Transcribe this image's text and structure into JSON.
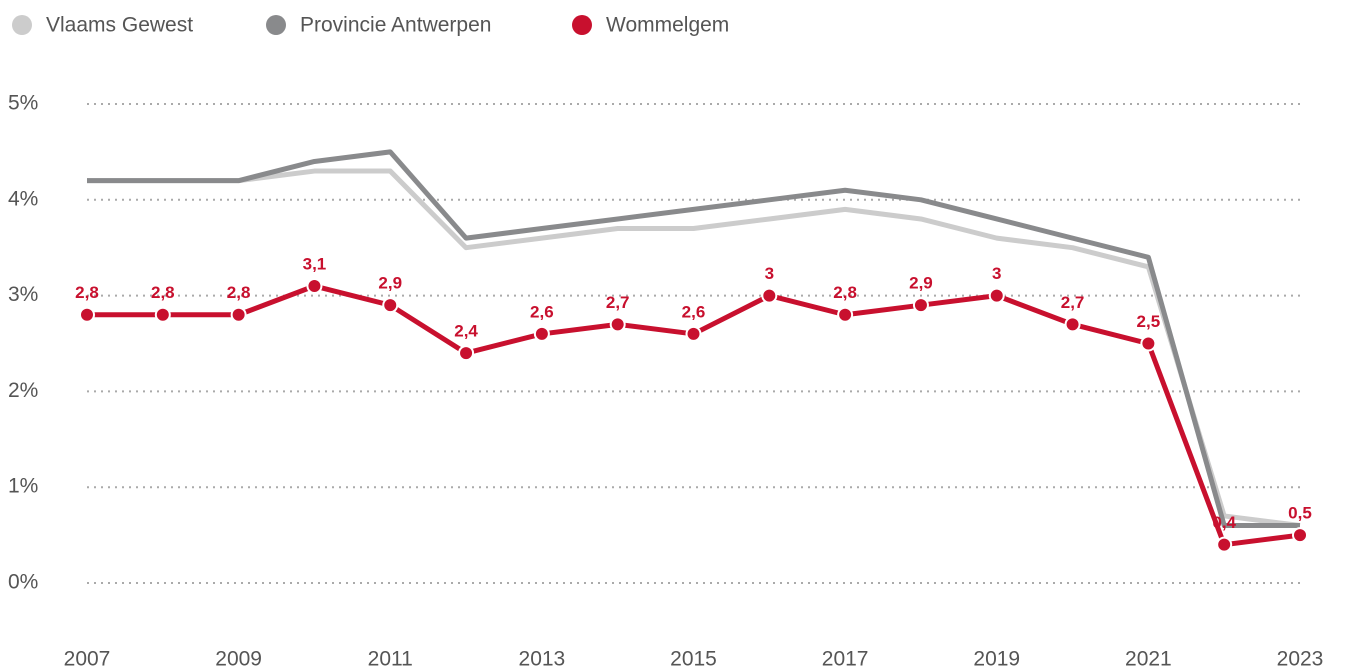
{
  "chart_data": {
    "type": "line",
    "categories": [
      "2007",
      null,
      "2009",
      null,
      "2011",
      null,
      "2013",
      null,
      "2015",
      null,
      "2017",
      null,
      "2019",
      null,
      "2021",
      null,
      "2023"
    ],
    "ylim": [
      0,
      5
    ],
    "yticks": [
      {
        "value": 0,
        "label": "0%"
      },
      {
        "value": 1,
        "label": "1%"
      },
      {
        "value": 2,
        "label": "2%"
      },
      {
        "value": 3,
        "label": "3%"
      },
      {
        "value": 4,
        "label": "4%"
      },
      {
        "value": 5,
        "label": "5%"
      }
    ],
    "grid": true,
    "legend": "top-left",
    "series": [
      {
        "name": "Vlaams Gewest",
        "color": "#cccccc",
        "values": [
          4.2,
          4.2,
          4.2,
          4.3,
          4.3,
          3.5,
          3.6,
          3.7,
          3.7,
          3.8,
          3.9,
          3.8,
          3.6,
          3.5,
          3.3,
          0.7,
          0.6
        ]
      },
      {
        "name": "Provincie Antwerpen",
        "color": "#898a8c",
        "values": [
          4.2,
          4.2,
          4.2,
          4.4,
          4.5,
          3.6,
          3.7,
          3.8,
          3.9,
          4.0,
          4.1,
          4.0,
          3.8,
          3.6,
          3.4,
          0.6,
          0.6
        ]
      },
      {
        "name": "Wommelgem",
        "color": "#c8102e",
        "markers": true,
        "values": [
          2.8,
          2.8,
          2.8,
          3.1,
          2.9,
          2.4,
          2.6,
          2.7,
          2.6,
          3,
          2.8,
          2.9,
          3,
          2.7,
          2.5,
          0.4,
          0.5
        ],
        "value_labels": [
          "2,8",
          "2,8",
          "2,8",
          "3,1",
          "2,9",
          "2,4",
          "2,6",
          "2,7",
          "2,6",
          "3",
          "2,8",
          "2,9",
          "3",
          "2,7",
          "2,5",
          "0,4",
          "0,5"
        ]
      }
    ]
  }
}
